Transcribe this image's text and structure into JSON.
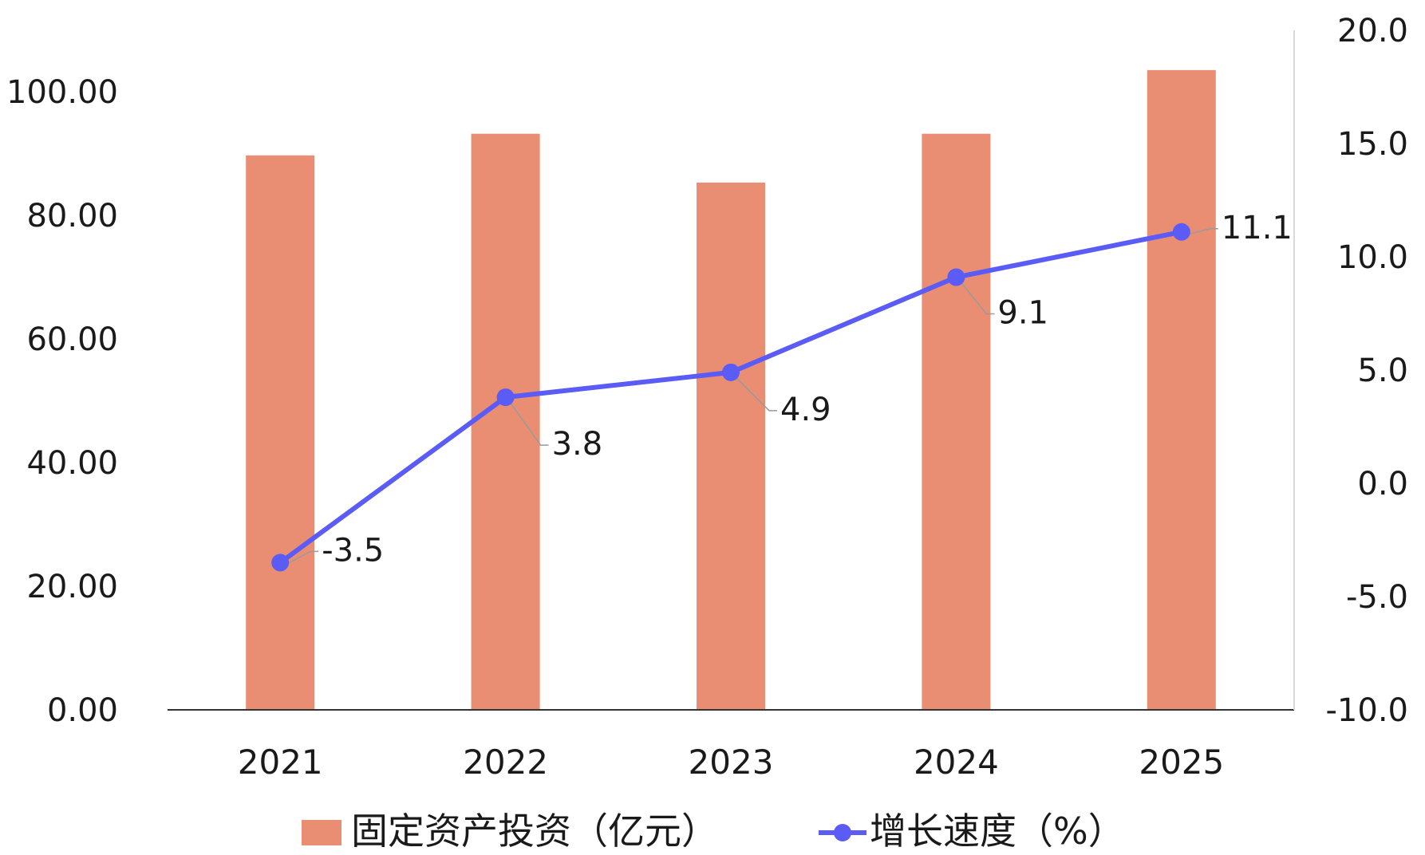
{
  "chart_data": {
    "type": "bar+line",
    "title": "",
    "categories": [
      "2021",
      "2022",
      "2023",
      "2024",
      "2025"
    ],
    "series": [
      {
        "name": "固定资产投资（亿元）",
        "type": "bar",
        "axis": "left",
        "color": "#E98E72",
        "values": [
          89.7,
          93.2,
          85.3,
          93.2,
          103.5
        ]
      },
      {
        "name": "增长速度（%）",
        "type": "line",
        "axis": "right",
        "color": "#5B5BF5",
        "values": [
          -3.5,
          3.8,
          4.9,
          9.1,
          11.1
        ],
        "labels": [
          "-3.5",
          "3.8",
          "4.9",
          "9.1",
          "11.1"
        ]
      }
    ],
    "y_left": {
      "ylim": [
        0,
        100
      ],
      "ticks": [
        "0.00",
        "20.00",
        "40.00",
        "60.00",
        "80.00",
        "100.00"
      ]
    },
    "y_right": {
      "ylim": [
        -10,
        20
      ],
      "ticks": [
        "-10.0",
        "-5.0",
        "0.0",
        "5.0",
        "10.0",
        "15.0",
        "20.0"
      ]
    },
    "grid": false,
    "legend": "bottom"
  }
}
